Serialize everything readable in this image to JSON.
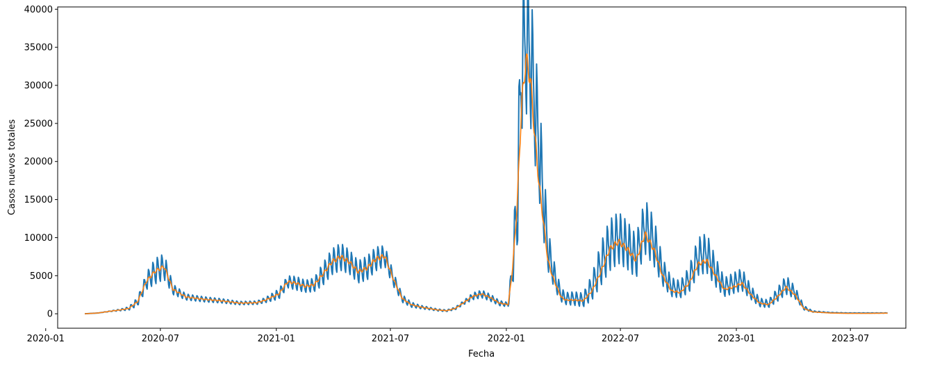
{
  "chart_data": {
    "type": "line",
    "xlabel": "Fecha",
    "ylabel": "Casos nuevos totales",
    "xlim": [
      "2020-01-20",
      "2023-09-27"
    ],
    "ylim": [
      -1900,
      40300
    ],
    "grid": false,
    "x_ticks": [
      {
        "date": "2020-01-01",
        "label": "2020-01"
      },
      {
        "date": "2020-07-01",
        "label": "2020-07"
      },
      {
        "date": "2021-01-01",
        "label": "2021-01"
      },
      {
        "date": "2021-07-01",
        "label": "2021-07"
      },
      {
        "date": "2022-01-01",
        "label": "2022-01"
      },
      {
        "date": "2022-07-01",
        "label": "2022-07"
      },
      {
        "date": "2023-01-01",
        "label": "2023-01"
      },
      {
        "date": "2023-07-01",
        "label": "2023-07"
      }
    ],
    "y_ticks": [
      0,
      5000,
      10000,
      15000,
      20000,
      25000,
      30000,
      35000,
      40000
    ],
    "series": [
      {
        "color": "#1f77b4",
        "style": "daily",
        "x": [
          "2020-03-03",
          "2020-03-24",
          "2020-04-14",
          "2020-04-28",
          "2020-05-12",
          "2020-05-26",
          "2020-06-09",
          "2020-06-23",
          "2020-07-07",
          "2020-07-21",
          "2020-08-11",
          "2020-09-08",
          "2020-10-06",
          "2020-11-03",
          "2020-12-01",
          "2020-12-15",
          "2021-01-05",
          "2021-01-19",
          "2021-02-02",
          "2021-02-16",
          "2021-03-02",
          "2021-03-16",
          "2021-03-30",
          "2021-04-13",
          "2021-04-27",
          "2021-05-11",
          "2021-05-25",
          "2021-06-08",
          "2021-06-22",
          "2021-07-06",
          "2021-07-20",
          "2021-08-03",
          "2021-08-17",
          "2021-08-31",
          "2021-09-14",
          "2021-09-28",
          "2021-10-12",
          "2021-10-26",
          "2021-11-09",
          "2021-11-23",
          "2021-12-07",
          "2021-12-21",
          "2022-01-04",
          "2022-01-11",
          "2022-01-18",
          "2022-01-25",
          "2022-02-01",
          "2022-02-08",
          "2022-02-15",
          "2022-02-22",
          "2022-03-01",
          "2022-03-08",
          "2022-03-15",
          "2022-03-22",
          "2022-03-29",
          "2022-04-05",
          "2022-04-19",
          "2022-05-03",
          "2022-05-17",
          "2022-05-31",
          "2022-06-14",
          "2022-06-28",
          "2022-07-12",
          "2022-07-26",
          "2022-08-09",
          "2022-08-23",
          "2022-09-06",
          "2022-09-20",
          "2022-10-04",
          "2022-10-18",
          "2022-11-01",
          "2022-11-15",
          "2022-11-29",
          "2022-12-13",
          "2022-12-27",
          "2023-01-10",
          "2023-01-24",
          "2023-02-07",
          "2023-02-21",
          "2023-03-07",
          "2023-03-21",
          "2023-04-04",
          "2023-04-18",
          "2023-05-02",
          "2023-05-30",
          "2023-06-27",
          "2023-07-25",
          "2023-08-29"
        ],
        "y": [
          0,
          100,
          350,
          500,
          700,
          1600,
          4300,
          5600,
          6200,
          3200,
          2200,
          1900,
          1700,
          1400,
          1450,
          1800,
          2600,
          4200,
          4000,
          3600,
          3800,
          5200,
          6800,
          7500,
          6800,
          5500,
          6000,
          7200,
          7600,
          4500,
          2000,
          1200,
          900,
          700,
          500,
          400,
          700,
          1500,
          2300,
          2600,
          2100,
          1400,
          1200,
          6000,
          14000,
          33000,
          36000,
          34000,
          28000,
          22000,
          15000,
          8500,
          6000,
          4000,
          2500,
          2000,
          2000,
          1800,
          3500,
          6500,
          9000,
          10000,
          9000,
          7500,
          11500,
          9500,
          5500,
          3500,
          3200,
          4500,
          7500,
          8000,
          5500,
          3500,
          4000,
          4500,
          2800,
          1500,
          1300,
          2500,
          3800,
          2800,
          800,
          300,
          150,
          100,
          100,
          100
        ],
        "amplitude": [
          0,
          0,
          50,
          100,
          200,
          500,
          1000,
          1500,
          1500,
          600,
          350,
          300,
          250,
          200,
          200,
          300,
          600,
          700,
          800,
          700,
          800,
          1300,
          1500,
          1600,
          1400,
          1300,
          1400,
          1400,
          1200,
          800,
          450,
          300,
          200,
          150,
          120,
          100,
          150,
          250,
          400,
          450,
          400,
          300,
          250,
          2000,
          6000,
          8000,
          8500,
          8000,
          7000,
          6000,
          4500,
          2500,
          1700,
          1200,
          800,
          700,
          800,
          800,
          1500,
          2500,
          3000,
          3000,
          2800,
          2500,
          3200,
          2800,
          1600,
          1100,
          1000,
          1500,
          2200,
          2300,
          1700,
          1100,
          1200,
          1300,
          800,
          500,
          450,
          800,
          1100,
          700,
          250,
          80,
          30,
          20,
          20,
          20
        ]
      },
      {
        "color": "#ff7f0e",
        "style": "rolling",
        "x": [
          "2020-03-03",
          "2020-03-24",
          "2020-04-14",
          "2020-04-28",
          "2020-05-12",
          "2020-05-26",
          "2020-06-09",
          "2020-06-23",
          "2020-07-07",
          "2020-07-21",
          "2020-08-11",
          "2020-09-08",
          "2020-10-06",
          "2020-11-03",
          "2020-12-01",
          "2020-12-15",
          "2021-01-05",
          "2021-01-19",
          "2021-02-02",
          "2021-02-16",
          "2021-03-02",
          "2021-03-16",
          "2021-03-30",
          "2021-04-13",
          "2021-04-27",
          "2021-05-11",
          "2021-05-25",
          "2021-06-08",
          "2021-06-22",
          "2021-07-06",
          "2021-07-20",
          "2021-08-03",
          "2021-08-17",
          "2021-08-31",
          "2021-09-14",
          "2021-09-28",
          "2021-10-12",
          "2021-10-26",
          "2021-11-09",
          "2021-11-23",
          "2021-12-07",
          "2021-12-21",
          "2022-01-04",
          "2022-01-11",
          "2022-01-18",
          "2022-01-25",
          "2022-02-01",
          "2022-02-08",
          "2022-02-15",
          "2022-02-22",
          "2022-03-01",
          "2022-03-08",
          "2022-03-15",
          "2022-03-22",
          "2022-03-29",
          "2022-04-05",
          "2022-04-19",
          "2022-05-03",
          "2022-05-17",
          "2022-05-31",
          "2022-06-14",
          "2022-06-28",
          "2022-07-12",
          "2022-07-26",
          "2022-08-09",
          "2022-08-23",
          "2022-09-06",
          "2022-09-20",
          "2022-10-04",
          "2022-10-18",
          "2022-11-01",
          "2022-11-15",
          "2022-11-29",
          "2022-12-13",
          "2022-12-27",
          "2023-01-10",
          "2023-01-24",
          "2023-02-07",
          "2023-02-21",
          "2023-03-07",
          "2023-03-21",
          "2023-04-04",
          "2023-04-18",
          "2023-05-02",
          "2023-05-30",
          "2023-06-27",
          "2023-07-25",
          "2023-08-29"
        ],
        "y": [
          0,
          100,
          350,
          500,
          700,
          1600,
          4300,
          5600,
          6200,
          3200,
          2200,
          1900,
          1700,
          1400,
          1450,
          1800,
          2600,
          4200,
          4000,
          3600,
          3800,
          5200,
          6800,
          7500,
          6800,
          5500,
          6000,
          7200,
          7600,
          4500,
          2000,
          1200,
          900,
          700,
          500,
          400,
          700,
          1500,
          2300,
          2600,
          2100,
          1400,
          1200,
          6000,
          14000,
          27000,
          33500,
          31000,
          23500,
          17000,
          12000,
          7000,
          5000,
          3500,
          2200,
          1800,
          1800,
          1700,
          3000,
          5500,
          8500,
          9500,
          8500,
          7000,
          10500,
          8500,
          5000,
          3000,
          2800,
          4000,
          6500,
          7000,
          5000,
          3200,
          3500,
          4000,
          2500,
          1400,
          1200,
          2200,
          3500,
          2500,
          700,
          250,
          100,
          50,
          50,
          80
        ]
      }
    ]
  }
}
